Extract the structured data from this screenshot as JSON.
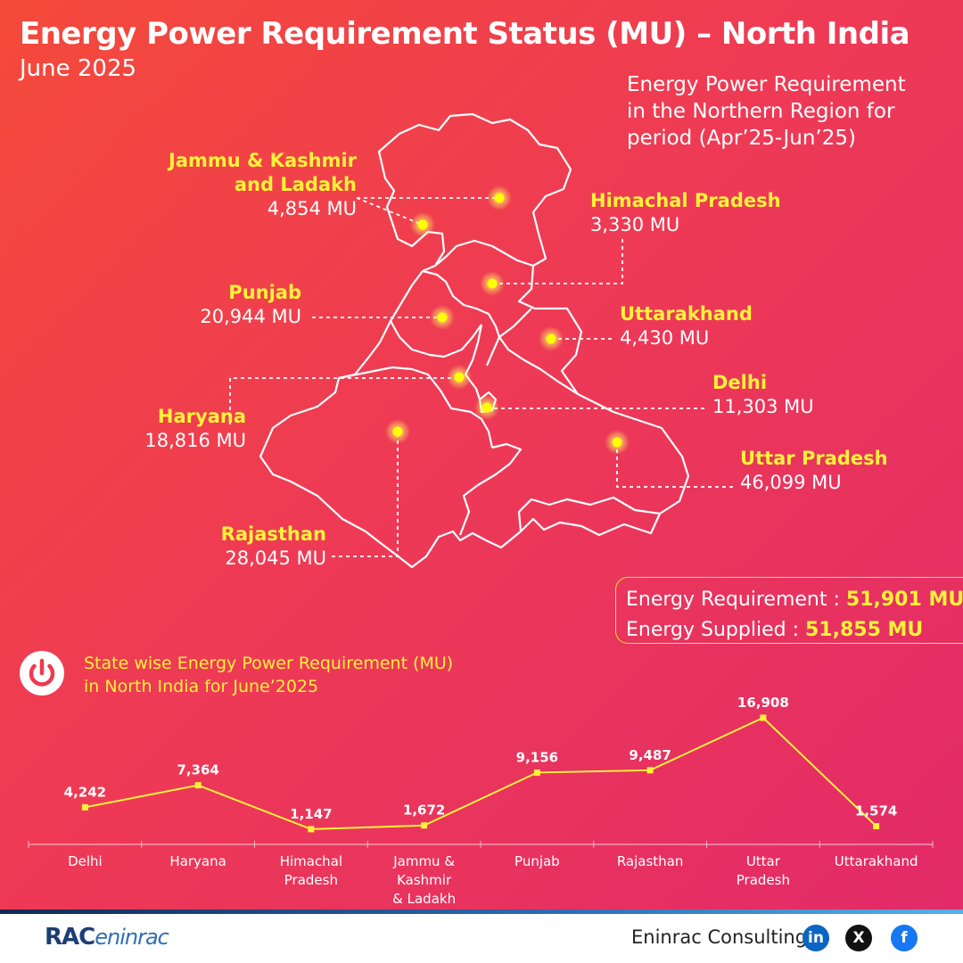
{
  "header": {
    "title": "Energy Power Requirement Status (MU) – North India",
    "subtitle": "June 2025"
  },
  "map_description": [
    "Energy Power Requirement",
    "in the Northern Region for",
    "period (Apr’25-Jun’25)"
  ],
  "states": [
    {
      "name_lines": [
        "Jammu & Kashmir",
        "and Ladakh"
      ],
      "value": "4,854 MU"
    },
    {
      "name_lines": [
        "Himachal Pradesh"
      ],
      "value": "3,330 MU"
    },
    {
      "name_lines": [
        "Punjab"
      ],
      "value": "20,944 MU"
    },
    {
      "name_lines": [
        "Uttarakhand"
      ],
      "value": "4,430 MU"
    },
    {
      "name_lines": [
        "Delhi"
      ],
      "value": "11,303 MU"
    },
    {
      "name_lines": [
        "Haryana"
      ],
      "value": "18,816 MU"
    },
    {
      "name_lines": [
        "Uttar Pradesh"
      ],
      "value": "46,099 MU"
    },
    {
      "name_lines": [
        "Rajasthan"
      ],
      "value": "28,045 MU"
    }
  ],
  "totals": {
    "requirement_label": "Energy Requirement : ",
    "requirement_value": "51,901 MU",
    "supplied_label": "Energy Supplied : ",
    "supplied_value": "51,855 MU"
  },
  "chart_title_lines": [
    "State wise Energy Power Requirement (MU)",
    "in North India for June’2025"
  ],
  "chart_data": {
    "type": "line",
    "title": "State wise Energy Power Requirement (MU) in North India for June’2025",
    "categories": [
      "Delhi",
      "Haryana",
      "Himachal Pradesh",
      "Jammu & Kashmir & Ladakh",
      "Punjab",
      "Rajasthan",
      "Uttar Pradesh",
      "Uttarakhand"
    ],
    "category_label_lines": [
      [
        "Delhi"
      ],
      [
        "Haryana"
      ],
      [
        "Himachal",
        "Pradesh"
      ],
      [
        "Jammu &",
        "Kashmir",
        "& Ladakh"
      ],
      [
        "Punjab"
      ],
      [
        "Rajasthan"
      ],
      [
        "Uttar",
        "Pradesh"
      ],
      [
        "Uttarakhand"
      ]
    ],
    "values": [
      4242,
      7364,
      1147,
      1672,
      9156,
      9487,
      16908,
      1574
    ],
    "value_labels": [
      "4,242",
      "7,364",
      "1,147",
      "1,672",
      "9,156",
      "9,487",
      "16,908",
      "1,574"
    ],
    "ylim": [
      0,
      16908
    ],
    "grid": false,
    "line_color": "#fff23a"
  },
  "footer": {
    "logo_left": "RAC",
    "logo_right": "eninrac",
    "brand": "Eninrac Consulting",
    "social": [
      {
        "icon": "linkedin-icon",
        "glyph": "in",
        "color": "#0a66c2"
      },
      {
        "icon": "x-icon",
        "glyph": "X",
        "color": "#111111"
      },
      {
        "icon": "facebook-icon",
        "glyph": "f",
        "color": "#1877f2"
      }
    ]
  },
  "colors": {
    "accent": "#fff23a",
    "text": "#ffffff",
    "marker": "#ffff00"
  }
}
